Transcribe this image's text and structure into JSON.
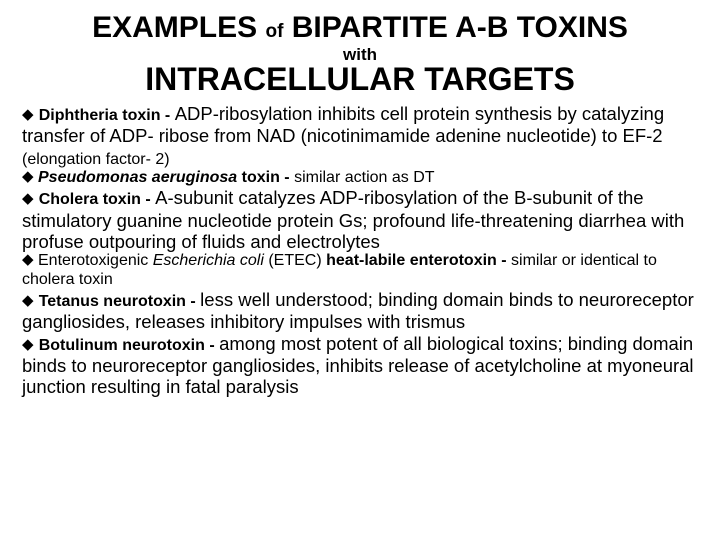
{
  "colors": {
    "text": "#000000",
    "background": "#ffffff"
  },
  "title": {
    "line1_a": "EXAMPLES ",
    "line1_of": "of",
    "line1_b": " BIPARTITE A-B TOXINS",
    "with": "with",
    "line2": "INTRACELLULAR TARGETS"
  },
  "bullet": "◆",
  "entries": {
    "e1": {
      "name": "Diphtheria toxin - ",
      "t1": "ADP-ribosylation inhibits cell protein synthesis by catalyzing transfer of ADP- ribose from NAD (nicotinimamide adenine nucleotide) to EF-2 ",
      "sm": "(elongation factor- 2)"
    },
    "e2": {
      "name_i": "Pseudomonas aeruginosa",
      "name_rest": " toxin - ",
      "t": "similar action as DT"
    },
    "e3": {
      "name": "Cholera toxin - ",
      "t": "A-subunit catalyzes ADP-ribosylation of the B-subunit  of the stimulatory guanine nucleotide protein  Gs;  profound life-threatening diarrhea with profuse outpouring of fluids and electrolytes"
    },
    "e4": {
      "pre": "Enterotoxigenic ",
      "i": "Escherichia coli ",
      "mid": "(ETEC) ",
      "bold2": "heat-labile enterotoxin - ",
      "t": "similar or identical to cholera toxin"
    },
    "e5": {
      "name": "Tetanus neurotoxin - ",
      "t": "less well understood;  binding domain binds to neuroreceptor gangliosides, releases inhibitory impulses with trismus"
    },
    "e6": {
      "name": "Botulinum neurotoxin - ",
      "t": "among most potent of all biological toxins;  binding domain binds to neuroreceptor gangliosides,  inhibits release of acetylcholine at myoneural junction resulting in fatal paralysis"
    }
  }
}
